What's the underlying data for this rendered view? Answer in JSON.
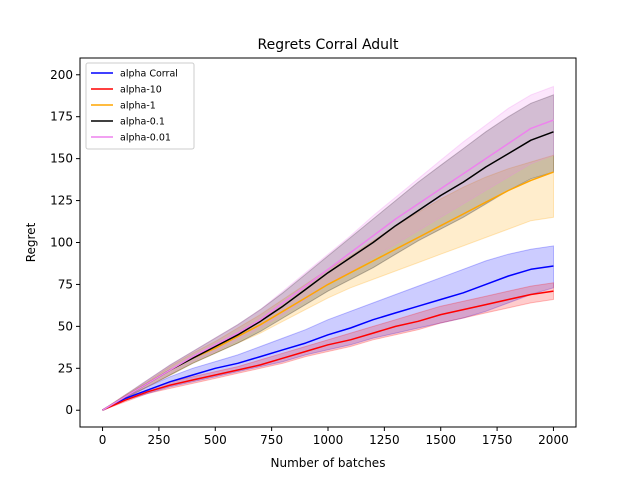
{
  "chart_data": {
    "type": "line",
    "title": "Regrets Corral Adult",
    "xlabel": "Number of batches",
    "ylabel": "Regret",
    "xlim": [
      -100,
      2100
    ],
    "ylim": [
      -10,
      210
    ],
    "xticks": [
      0,
      250,
      500,
      750,
      1000,
      1250,
      1500,
      1750,
      2000
    ],
    "yticks": [
      0,
      25,
      50,
      75,
      100,
      125,
      150,
      175,
      200
    ],
    "grid": false,
    "legend_position": "top-left",
    "x": [
      0,
      100,
      200,
      300,
      400,
      500,
      600,
      700,
      800,
      900,
      1000,
      1100,
      1200,
      1300,
      1400,
      1500,
      1600,
      1700,
      1800,
      1900,
      2000
    ],
    "series": [
      {
        "name": "alpha Corral",
        "color": "#0000ff",
        "values": [
          0,
          7,
          12,
          17,
          21,
          25,
          28,
          32,
          36,
          40,
          45,
          49,
          54,
          58,
          62,
          66,
          70,
          75,
          80,
          84,
          86
        ],
        "lower": [
          0,
          6,
          10,
          14,
          17,
          20,
          23,
          26,
          29,
          33,
          36,
          39,
          43,
          46,
          49,
          52,
          55,
          59,
          64,
          69,
          73
        ],
        "upper": [
          0,
          8,
          14,
          20,
          25,
          29,
          33,
          38,
          43,
          48,
          54,
          59,
          64,
          69,
          74,
          79,
          84,
          89,
          93,
          96,
          98
        ]
      },
      {
        "name": "alpha-10",
        "color": "#ff0000",
        "values": [
          0,
          6,
          11,
          15,
          18,
          21,
          24,
          27,
          31,
          35,
          39,
          42,
          46,
          50,
          53,
          57,
          60,
          63,
          66,
          69,
          71
        ],
        "lower": [
          0,
          5,
          10,
          13,
          16,
          19,
          22,
          25,
          28,
          32,
          35,
          38,
          42,
          45,
          48,
          52,
          55,
          58,
          61,
          64,
          66
        ],
        "upper": [
          0,
          7,
          12,
          17,
          20,
          23,
          26,
          30,
          34,
          38,
          42,
          46,
          50,
          54,
          58,
          62,
          65,
          68,
          71,
          74,
          76
        ]
      },
      {
        "name": "alpha-1",
        "color": "#ffa500",
        "values": [
          0,
          8,
          16,
          24,
          31,
          37,
          44,
          51,
          59,
          67,
          75,
          82,
          89,
          96,
          103,
          110,
          117,
          124,
          131,
          137,
          142
        ],
        "lower": [
          0,
          7,
          14,
          21,
          28,
          34,
          40,
          46,
          53,
          60,
          67,
          73,
          78,
          83,
          88,
          93,
          98,
          103,
          108,
          113,
          115
        ],
        "upper": [
          0,
          9,
          17,
          26,
          34,
          41,
          49,
          57,
          66,
          75,
          84,
          92,
          101,
          110,
          118,
          126,
          133,
          139,
          144,
          148,
          152
        ]
      },
      {
        "name": "alpha-0.1",
        "color": "#000000",
        "values": [
          0,
          8,
          16,
          24,
          31,
          38,
          45,
          53,
          62,
          72,
          82,
          91,
          100,
          110,
          119,
          128,
          136,
          145,
          153,
          161,
          166
        ],
        "lower": [
          0,
          7,
          14,
          21,
          28,
          34,
          40,
          47,
          55,
          63,
          71,
          78,
          85,
          93,
          101,
          108,
          115,
          123,
          131,
          138,
          142
        ],
        "upper": [
          0,
          9,
          18,
          27,
          35,
          43,
          51,
          60,
          70,
          81,
          92,
          103,
          114,
          125,
          136,
          146,
          156,
          166,
          175,
          183,
          188
        ]
      },
      {
        "name": "alpha-0.01",
        "color": "#ee82ee",
        "values": [
          0,
          8,
          16,
          24,
          32,
          39,
          46,
          54,
          64,
          74,
          84,
          94,
          104,
          114,
          123,
          132,
          141,
          150,
          159,
          168,
          173
        ],
        "lower": [
          0,
          7,
          14,
          22,
          29,
          35,
          42,
          49,
          57,
          66,
          75,
          83,
          91,
          99,
          107,
          115,
          123,
          131,
          139,
          147,
          152
        ],
        "upper": [
          0,
          9,
          18,
          27,
          35,
          43,
          51,
          60,
          71,
          82,
          93,
          104,
          116,
          127,
          138,
          149,
          160,
          170,
          180,
          188,
          193
        ]
      }
    ]
  }
}
